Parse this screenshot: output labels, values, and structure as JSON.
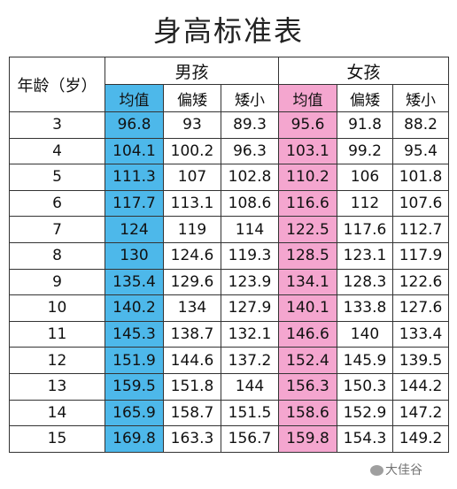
{
  "title": "身高标准表",
  "header": {
    "age_label": "年龄（岁）",
    "boy_label": "男孩",
    "girl_label": "女孩",
    "sub_labels": [
      "均值",
      "偏矮",
      "矮小"
    ]
  },
  "rows": [
    {
      "age": "3",
      "boy": [
        "96.8",
        "93",
        "89.3"
      ],
      "girl": [
        "95.6",
        "91.8",
        "88.2"
      ]
    },
    {
      "age": "4",
      "boy": [
        "104.1",
        "100.2",
        "96.3"
      ],
      "girl": [
        "103.1",
        "99.2",
        "95.4"
      ]
    },
    {
      "age": "5",
      "boy": [
        "111.3",
        "107",
        "102.8"
      ],
      "girl": [
        "110.2",
        "106",
        "101.8"
      ]
    },
    {
      "age": "6",
      "boy": [
        "117.7",
        "113.1",
        "108.6"
      ],
      "girl": [
        "116.6",
        "112",
        "107.6"
      ]
    },
    {
      "age": "7",
      "boy": [
        "124",
        "119",
        "114"
      ],
      "girl": [
        "122.5",
        "117.6",
        "112.7"
      ]
    },
    {
      "age": "8",
      "boy": [
        "130",
        "124.6",
        "119.3"
      ],
      "girl": [
        "128.5",
        "123.1",
        "117.9"
      ]
    },
    {
      "age": "9",
      "boy": [
        "135.4",
        "129.6",
        "123.9"
      ],
      "girl": [
        "134.1",
        "128.3",
        "122.6"
      ]
    },
    {
      "age": "10",
      "boy": [
        "140.2",
        "134",
        "127.9"
      ],
      "girl": [
        "140.1",
        "133.8",
        "127.6"
      ]
    },
    {
      "age": "11",
      "boy": [
        "145.3",
        "138.7",
        "132.1"
      ],
      "girl": [
        "146.6",
        "140",
        "133.4"
      ]
    },
    {
      "age": "12",
      "boy": [
        "151.9",
        "144.6",
        "137.2"
      ],
      "girl": [
        "152.4",
        "145.9",
        "139.5"
      ]
    },
    {
      "age": "13",
      "boy": [
        "159.5",
        "151.8",
        "144"
      ],
      "girl": [
        "156.3",
        "150.3",
        "144.2"
      ]
    },
    {
      "age": "14",
      "boy": [
        "165.9",
        "158.7",
        "151.5"
      ],
      "girl": [
        "158.6",
        "152.9",
        "147.2"
      ]
    },
    {
      "age": "15",
      "boy": [
        "169.8",
        "163.3",
        "156.7"
      ],
      "girl": [
        "159.8",
        "154.3",
        "149.2"
      ]
    }
  ],
  "colors": {
    "boy_average": "#4db8ea",
    "girl_average": "#f4a6cf",
    "border": "#333333"
  },
  "watermark": "大佳谷"
}
